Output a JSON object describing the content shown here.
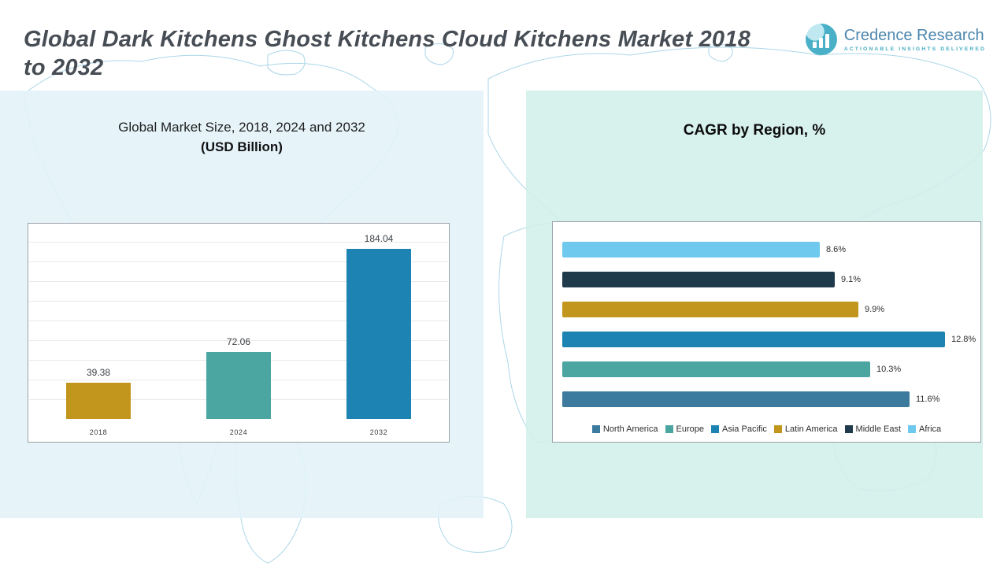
{
  "header": {
    "title": "Global Dark Kitchens Ghost Kitchens Cloud Kitchens Market 2018 to 2032",
    "brand": {
      "name": "Credence Research",
      "tagline": "Actionable Insights Delivered"
    }
  },
  "chart_data": [
    {
      "type": "bar",
      "title": "Global Market Size, 2018, 2024 and 2032",
      "subtitle": "(USD Billion)",
      "categories": [
        "2018",
        "2024",
        "2032"
      ],
      "values": [
        39.38,
        72.06,
        184.04
      ],
      "value_labels": [
        "39.38",
        "72.06",
        "184.04"
      ],
      "bar_colors": [
        "#C2951C",
        "#4BA5A0",
        "#1C83B2"
      ],
      "ylim": [
        0,
        200
      ],
      "grid": true,
      "legend_position": "none"
    },
    {
      "type": "bar",
      "orientation": "horizontal",
      "title": "CAGR by Region, %",
      "xlim": [
        0,
        14
      ],
      "grid": false,
      "legend_position": "bottom",
      "rows": [
        {
          "region": "Africa",
          "value": 8.6,
          "label": "8.6%",
          "color": "#6FC9EF"
        },
        {
          "region": "Middle East",
          "value": 9.1,
          "label": "9.1%",
          "color": "#1F3A4B"
        },
        {
          "region": "Latin America",
          "value": 9.9,
          "label": "9.9%",
          "color": "#C2951C"
        },
        {
          "region": "Asia Pacific",
          "value": 12.8,
          "label": "12.8%",
          "color": "#1C83B2"
        },
        {
          "region": "Europe",
          "value": 10.3,
          "label": "10.3%",
          "color": "#4BA5A0"
        },
        {
          "region": "North America",
          "value": 11.6,
          "label": "11.6%",
          "color": "#3D7B9E"
        }
      ],
      "legend": [
        {
          "label": "North America",
          "color": "#3D7B9E"
        },
        {
          "label": "Europe",
          "color": "#4BA5A0"
        },
        {
          "label": "Asia Pacific",
          "color": "#1C83B2"
        },
        {
          "label": "Latin America",
          "color": "#C2951C"
        },
        {
          "label": "Middle East",
          "color": "#1F3A4B"
        },
        {
          "label": "Africa",
          "color": "#6FC9EF"
        }
      ]
    }
  ]
}
